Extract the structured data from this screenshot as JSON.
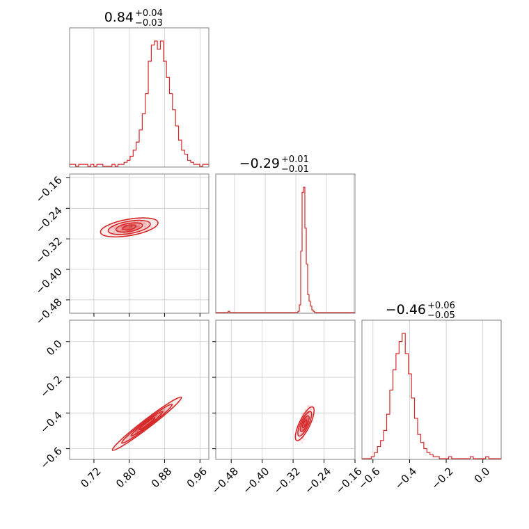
{
  "chart_data": {
    "type": "corner",
    "color": "#d62728",
    "panels": [
      {
        "id": "hist-0",
        "type": "histogram",
        "row": 0,
        "col": 0,
        "title": {
          "value": "0.84",
          "plus": "+0.04",
          "minus": "−0.03"
        },
        "xlim": [
          0.665,
          0.98
        ],
        "bin_edges_range": [
          0.665,
          0.98
        ],
        "counts": [
          1,
          1,
          0,
          1,
          1,
          1,
          0,
          1,
          0,
          1,
          1,
          0,
          0,
          0,
          1,
          0,
          1,
          1,
          2,
          3,
          5,
          8,
          12,
          18,
          26,
          36,
          52,
          60,
          62,
          58,
          62,
          52,
          44,
          36,
          28,
          20,
          13,
          8,
          6,
          3,
          2,
          1,
          1,
          0,
          1,
          1
        ],
        "xticks": [],
        "yticks": []
      },
      {
        "id": "hist-1",
        "type": "histogram",
        "row": 1,
        "col": 1,
        "title": {
          "value": "−0.29",
          "plus": "+0.01",
          "minus": "−0.01"
        },
        "xlim": [
          0.0,
          1.0
        ],
        "counts": [
          0,
          0,
          0,
          0,
          0,
          0,
          0,
          0,
          0,
          1,
          0,
          0,
          0,
          0,
          0,
          0,
          0,
          0,
          0,
          0,
          0,
          0,
          0,
          0,
          0,
          0,
          0,
          0,
          0,
          0,
          0,
          0,
          0,
          0,
          0,
          0,
          0,
          0,
          0,
          0,
          0,
          0,
          0,
          0,
          0,
          0,
          0,
          0,
          0,
          0,
          0,
          0,
          0,
          0,
          0,
          0,
          0,
          0,
          0,
          1,
          6,
          48,
          94,
          98,
          66,
          38,
          14,
          9,
          5,
          2,
          1,
          0,
          0,
          0,
          0,
          0,
          0,
          0,
          0,
          0,
          0,
          0,
          0,
          0,
          0,
          0,
          0,
          0,
          0,
          0,
          0,
          0,
          0,
          0,
          0,
          0,
          0,
          0,
          0,
          0
        ],
        "xticks": [],
        "yticks": []
      },
      {
        "id": "hist-2",
        "type": "histogram",
        "row": 2,
        "col": 2,
        "title": {
          "value": "−0.46",
          "plus": "+0.06",
          "minus": "−0.05"
        },
        "xlim": [
          -0.66,
          0.1
        ],
        "counts": [
          0,
          0,
          0,
          1,
          3,
          6,
          9,
          14,
          22,
          34,
          44,
          52,
          58,
          62,
          52,
          42,
          30,
          20,
          12,
          8,
          5,
          3,
          2,
          1,
          1,
          0,
          0,
          0,
          1,
          0,
          0,
          0,
          0,
          0,
          0,
          1,
          0,
          0,
          0,
          0,
          1,
          0,
          0,
          0,
          0
        ],
        "xticks": [
          -0.6,
          -0.4,
          -0.2,
          0.0
        ],
        "xtick_labels": [
          "−0.6",
          "−0.4",
          "−0.2",
          "0.0"
        ],
        "yticks": []
      },
      {
        "id": "scatter-1-0",
        "type": "scatter-contour",
        "row": 1,
        "col": 0,
        "xlim": [
          0.665,
          0.98
        ],
        "ylim": [
          -0.515,
          -0.15
        ],
        "xticks": [
          0.72,
          0.8,
          0.88,
          0.96
        ],
        "yticks": [
          -0.16,
          -0.24,
          -0.32,
          -0.4,
          -0.48
        ],
        "ytick_labels": [
          "−0.16",
          "−0.24",
          "−0.32",
          "−0.40",
          "−0.48"
        ],
        "trend": {
          "x0": 0.8,
          "y0": -0.29,
          "slope": 0.2
        },
        "spread": [
          0.025,
          0.01
        ]
      },
      {
        "id": "scatter-2-0",
        "type": "scatter-contour",
        "row": 2,
        "col": 0,
        "xlim": [
          0.665,
          0.98
        ],
        "ylim": [
          -0.66,
          0.12
        ],
        "xticks": [
          0.72,
          0.8,
          0.88,
          0.96
        ],
        "xtick_labels": [
          "0.72",
          "0.80",
          "0.88",
          "0.96"
        ],
        "yticks": [
          0.0,
          -0.2,
          -0.4,
          -0.6
        ],
        "ytick_labels": [
          "0.0",
          "−0.2",
          "−0.4",
          "−0.6"
        ],
        "trend": {
          "x0": 0.84,
          "y0": -0.46,
          "slope": 1.9
        },
        "spread": [
          0.03,
          0.015
        ]
      },
      {
        "id": "scatter-2-1",
        "type": "scatter-contour",
        "row": 2,
        "col": 1,
        "xlim": [
          -0.52,
          -0.16
        ],
        "ylim": [
          -0.66,
          0.12
        ],
        "xticks": [
          -0.48,
          -0.4,
          -0.32,
          -0.24,
          -0.16
        ],
        "xtick_labels": [
          "−0.48",
          "−0.40",
          "−0.32",
          "−0.24",
          "−0.16"
        ],
        "yticks": [
          0.0,
          -0.2,
          -0.4,
          -0.6
        ],
        "trend": {
          "x0": -0.29,
          "y0": -0.46,
          "slope": 4.5
        },
        "spread": [
          0.008,
          0.05
        ]
      }
    ]
  }
}
